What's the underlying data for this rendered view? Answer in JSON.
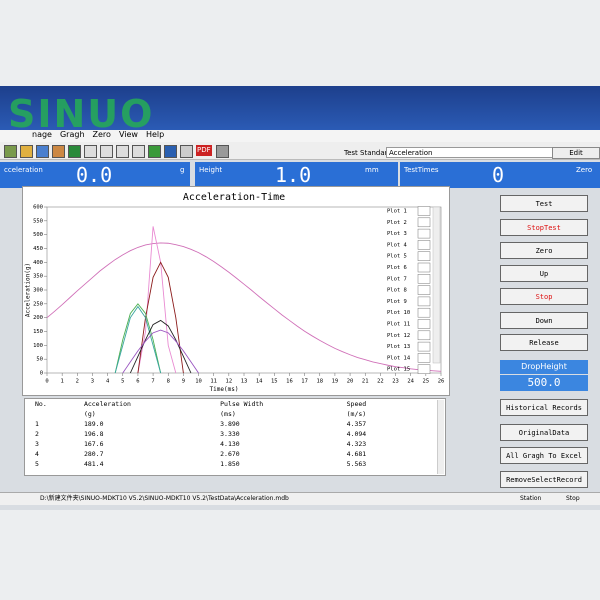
{
  "logo": "SINUO",
  "menu": [
    "nage",
    "Gragh",
    "Zero",
    "View",
    "Help"
  ],
  "toolbar": {
    "pdf": "PDF"
  },
  "test_standard": {
    "label": "Test Standard",
    "value": "Acceleration",
    "button": "Edit"
  },
  "readouts": [
    {
      "label": "cceleration",
      "value": "0.0",
      "unit": "g"
    },
    {
      "label": "Height",
      "value": "1.0",
      "unit": "mm"
    },
    {
      "label": "TestTimes",
      "value": "0",
      "unit": "Zero"
    }
  ],
  "chart_data": {
    "type": "line",
    "title": "Acceleration-Time",
    "y_label": "Acceleration(g)",
    "x_label": "Time(ms)",
    "xlim": [
      0,
      26
    ],
    "ylim": [
      0,
      600
    ],
    "xticks": [
      0,
      1,
      2,
      3,
      4,
      5,
      6,
      7,
      8,
      9,
      10,
      11,
      12,
      13,
      14,
      15,
      16,
      17,
      18,
      19,
      20,
      21,
      22,
      23,
      24,
      25,
      26
    ],
    "yticks": [
      0,
      50,
      100,
      150,
      200,
      250,
      300,
      350,
      400,
      450,
      500,
      550,
      600
    ],
    "grid": false,
    "plot_list": [
      "Plot 1",
      "Plot 2",
      "Plot 3",
      "Plot 4",
      "Plot 5",
      "Plot 6",
      "Plot 7",
      "Plot 8",
      "Plot 9",
      "Plot 10",
      "Plot 11",
      "Plot 12",
      "Plot 13",
      "Plot 14",
      "Plot 15"
    ],
    "x": [
      0,
      0.5,
      1,
      1.5,
      2,
      2.5,
      3,
      3.5,
      4,
      4.5,
      5,
      5.5,
      6,
      6.5,
      7,
      7.5,
      8,
      8.5,
      9,
      9.5,
      10,
      10.5,
      11,
      11.5,
      12,
      12.5,
      13,
      13.5,
      14,
      14.5,
      15,
      15.5,
      16,
      16.5,
      17,
      17.5,
      18,
      18.5,
      19,
      19.5,
      20,
      20.5,
      21,
      21.5,
      22,
      22.5,
      23,
      23.5,
      24,
      24.5,
      25,
      25.5,
      26
    ],
    "series": [
      {
        "color": "#d070b8",
        "values": [
          200,
          223,
          247,
          272,
          297,
          321,
          345,
          369,
          390,
          410,
          427,
          442,
          454,
          463,
          468,
          470,
          469,
          464,
          457,
          447,
          435,
          420,
          403,
          384,
          364,
          343,
          321,
          299,
          276,
          254,
          232,
          210,
          190,
          170,
          151,
          134,
          118,
          103,
          89,
          77,
          66,
          56,
          48,
          40,
          34,
          28,
          23,
          19,
          15,
          12,
          10,
          8,
          6
        ]
      },
      {
        "color": "#e98bd2",
        "values": [
          null,
          null,
          null,
          null,
          null,
          null,
          null,
          null,
          null,
          null,
          null,
          null,
          0,
          150,
          530,
          400,
          100,
          0,
          null,
          null,
          null,
          null,
          null,
          null,
          null,
          null,
          null,
          null,
          null,
          null,
          null,
          null,
          null,
          null,
          null,
          null,
          null,
          null,
          null,
          null,
          null,
          null,
          null,
          null,
          null,
          null,
          null,
          null,
          null,
          null,
          null,
          null,
          null
        ]
      },
      {
        "color": "#8b1a1a",
        "values": [
          null,
          null,
          null,
          null,
          null,
          null,
          null,
          null,
          null,
          null,
          null,
          null,
          0,
          200,
          346,
          400,
          346,
          200,
          0,
          null,
          null,
          null,
          null,
          null,
          null,
          null,
          null,
          null,
          null,
          null,
          null,
          null,
          null,
          null,
          null,
          null,
          null,
          null,
          null,
          null,
          null,
          null,
          null,
          null,
          null,
          null,
          null,
          null,
          null,
          null,
          null,
          null,
          null
        ]
      },
      {
        "color": "#4caf50",
        "values": [
          null,
          null,
          null,
          null,
          null,
          null,
          null,
          null,
          null,
          0,
          120,
          215,
          250,
          215,
          120,
          0,
          null,
          null,
          null,
          null,
          null,
          null,
          null,
          null,
          null,
          null,
          null,
          null,
          null,
          null,
          null,
          null,
          null,
          null,
          null,
          null,
          null,
          null,
          null,
          null,
          null,
          null,
          null,
          null,
          null,
          null,
          null,
          null,
          null,
          null,
          null,
          null,
          null
        ]
      },
      {
        "color": "#3aa6a0",
        "values": [
          null,
          null,
          null,
          null,
          null,
          null,
          null,
          null,
          null,
          0,
          100,
          200,
          240,
          200,
          100,
          0,
          null,
          null,
          null,
          null,
          null,
          null,
          null,
          null,
          null,
          null,
          null,
          null,
          null,
          null,
          null,
          null,
          null,
          null,
          null,
          null,
          null,
          null,
          null,
          null,
          null,
          null,
          null,
          null,
          null,
          null,
          null,
          null,
          null,
          null,
          null,
          null,
          null
        ]
      },
      {
        "color": "#222222",
        "values": [
          null,
          null,
          null,
          null,
          null,
          null,
          null,
          null,
          null,
          null,
          null,
          0,
          60,
          120,
          175,
          190,
          170,
          120,
          60,
          0,
          null,
          null,
          null,
          null,
          null,
          null,
          null,
          null,
          null,
          null,
          null,
          null,
          null,
          null,
          null,
          null,
          null,
          null,
          null,
          null,
          null,
          null,
          null,
          null,
          null,
          null,
          null,
          null,
          null,
          null,
          null,
          null,
          null
        ]
      },
      {
        "color": "#9a55c0",
        "values": [
          null,
          null,
          null,
          null,
          null,
          null,
          null,
          null,
          null,
          null,
          0,
          40,
          80,
          115,
          145,
          155,
          145,
          115,
          80,
          40,
          0,
          null,
          null,
          null,
          null,
          null,
          null,
          null,
          null,
          null,
          null,
          null,
          null,
          null,
          null,
          null,
          null,
          null,
          null,
          null,
          null,
          null,
          null,
          null,
          null,
          null,
          null,
          null,
          null,
          null,
          null,
          null,
          null
        ]
      }
    ]
  },
  "table": {
    "columns": [
      [
        "No."
      ],
      [
        "Acceleration",
        "(g)"
      ],
      [
        "Pulse Width",
        "(ms)"
      ],
      [
        "Speed",
        "(m/s)"
      ]
    ],
    "rows": [
      [
        "1",
        "189.0",
        "3.890",
        "4.357"
      ],
      [
        "2",
        "196.8",
        "3.330",
        "4.094"
      ],
      [
        "3",
        "167.6",
        "4.130",
        "4.323"
      ],
      [
        "4",
        "280.7",
        "2.670",
        "4.681"
      ],
      [
        "5",
        "481.4",
        "1.850",
        "5.563"
      ]
    ]
  },
  "buttons": [
    "Test",
    "StopTest",
    "Zero",
    "Up",
    "Stop",
    "Down",
    "Release"
  ],
  "drop_height": {
    "label": "DropHeight",
    "value": "500.0"
  },
  "actions": [
    "Historical Records",
    "OriginalData",
    "All Gragh To Excel",
    "RemoveSelectRecord"
  ],
  "status": {
    "path": "D:\\新建文件夹\\SINUO-MDKT10 V5.2\\SINUO-MDKT10 V5.2\\TestData\\Acceleration.mdb",
    "station": "Station",
    "state": "Stop"
  }
}
